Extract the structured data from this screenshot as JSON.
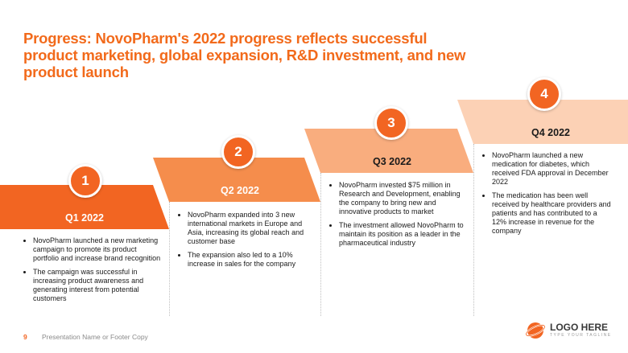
{
  "title": "Progress: NovoPharm's 2022 progress reflects successful product marketing, global expansion, R&D investment, and new product launch",
  "colors": {
    "accent": "#f26522",
    "step1": "#f26522",
    "step2": "#f58d4c",
    "step3": "#f9ad7e",
    "step4": "#fcd1b5"
  },
  "steps": [
    {
      "number": "1",
      "quarter": "Q1 2022",
      "bullets": [
        "NovoPharm launched a new marketing campaign to promote its product portfolio and increase brand recognition",
        "The campaign was successful in increasing product awareness and generating interest from potential customers"
      ]
    },
    {
      "number": "2",
      "quarter": "Q2 2022",
      "bullets": [
        "NovoPharm expanded into 3 new international markets in Europe and Asia, increasing its global reach and customer base",
        "The expansion also led to a 10% increase in sales for the company"
      ]
    },
    {
      "number": "3",
      "quarter": "Q3 2022",
      "bullets": [
        "NovoPharm invested $75 million in Research and Development, enabling the company to bring new and innovative products to market",
        "The investment allowed NovoPharm to maintain its position as a leader in the pharmaceutical industry"
      ]
    },
    {
      "number": "4",
      "quarter": "Q4 2022",
      "bullets": [
        "NovoPharm launched a new medication for diabetes, which received FDA approval in December 2022",
        "The medication has been well received by healthcare providers and patients and has contributed to a 12% increase in revenue for the company"
      ]
    }
  ],
  "footer": {
    "page_number": "9",
    "text": "Presentation Name or Footer Copy"
  },
  "logo": {
    "name": "LOGO HERE",
    "tagline": "TYPE YOUR TAGLINE",
    "icon": "orbit-logo-icon"
  }
}
